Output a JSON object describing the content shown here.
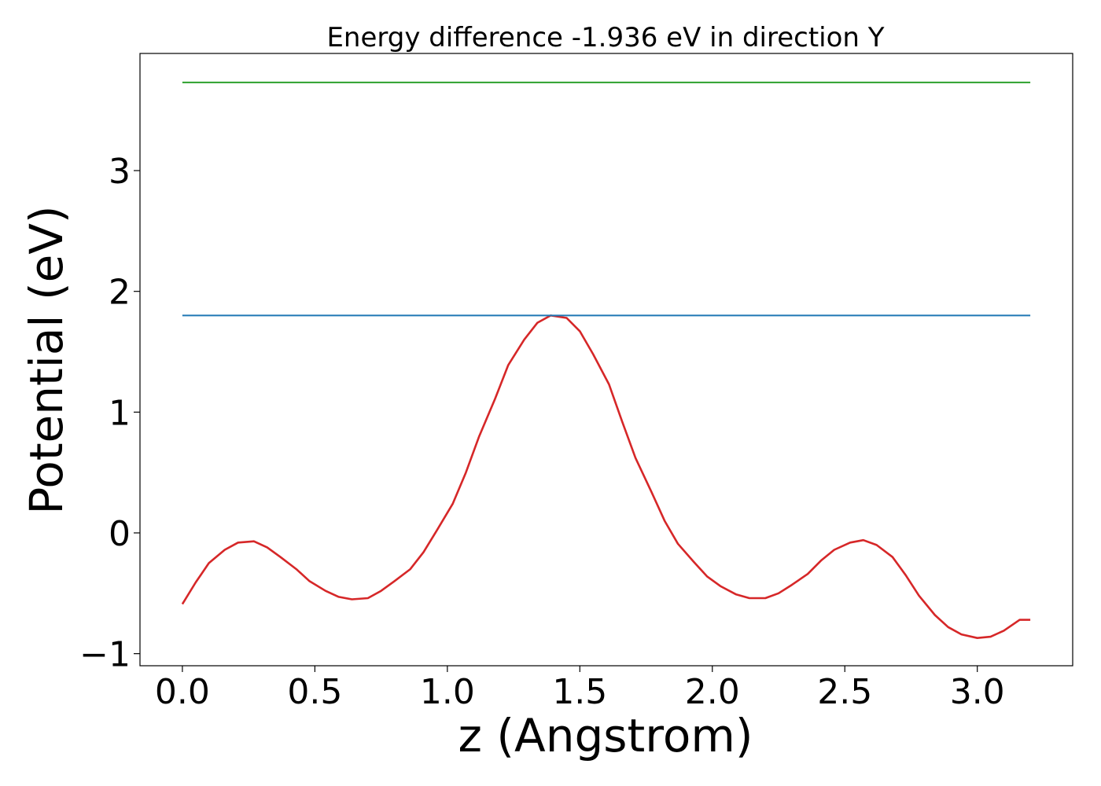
{
  "chart_data": {
    "type": "line",
    "title": "Energy difference -1.936 eV in direction Y",
    "xlabel": "z (Angstrom)",
    "ylabel": "Potential (eV)",
    "xlim": [
      -0.16,
      3.36
    ],
    "ylim": [
      -1.1,
      3.97
    ],
    "xticks": [
      0.0,
      0.5,
      1.0,
      1.5,
      2.0,
      2.5,
      3.0
    ],
    "xtick_labels": [
      "0.0",
      "0.5",
      "1.0",
      "1.5",
      "2.0",
      "2.5",
      "3.0"
    ],
    "yticks": [
      -1,
      0,
      1,
      2,
      3
    ],
    "ytick_labels": [
      "−1",
      "0",
      "1",
      "2",
      "3"
    ],
    "grid": false,
    "series": [
      {
        "color": "#d62728",
        "x": [
          0.0,
          0.05,
          0.1,
          0.16,
          0.21,
          0.27,
          0.32,
          0.37,
          0.43,
          0.48,
          0.54,
          0.59,
          0.64,
          0.7,
          0.75,
          0.8,
          0.86,
          0.91,
          0.96,
          1.02,
          1.07,
          1.12,
          1.18,
          1.23,
          1.29,
          1.34,
          1.39,
          1.45,
          1.5,
          1.55,
          1.61,
          1.66,
          1.71,
          1.77,
          1.82,
          1.87,
          1.93,
          1.98,
          2.03,
          2.09,
          2.14,
          2.2,
          2.25,
          2.3,
          2.36,
          2.41,
          2.46,
          2.52,
          2.57,
          2.62,
          2.68,
          2.73,
          2.78,
          2.84,
          2.89,
          2.94,
          3.0,
          3.05,
          3.1,
          3.16,
          3.2
        ],
        "y": [
          -0.59,
          -0.41,
          -0.25,
          -0.14,
          -0.08,
          -0.07,
          -0.12,
          -0.2,
          -0.3,
          -0.4,
          -0.48,
          -0.53,
          -0.55,
          -0.54,
          -0.48,
          -0.4,
          -0.3,
          -0.16,
          0.02,
          0.24,
          0.5,
          0.8,
          1.11,
          1.39,
          1.6,
          1.74,
          1.8,
          1.78,
          1.67,
          1.48,
          1.23,
          0.92,
          0.62,
          0.34,
          0.1,
          -0.09,
          -0.24,
          -0.36,
          -0.44,
          -0.51,
          -0.54,
          -0.54,
          -0.5,
          -0.43,
          -0.34,
          -0.23,
          -0.14,
          -0.08,
          -0.06,
          -0.1,
          -0.2,
          -0.35,
          -0.52,
          -0.68,
          -0.78,
          -0.84,
          -0.87,
          -0.86,
          -0.81,
          -0.72,
          -0.72
        ]
      },
      {
        "color": "#1f77b4",
        "x": [
          0.0,
          3.2
        ],
        "y": [
          1.8,
          1.8
        ]
      },
      {
        "color": "#2ca02c",
        "x": [
          0.0,
          3.2
        ],
        "y": [
          3.73,
          3.73
        ]
      }
    ]
  }
}
